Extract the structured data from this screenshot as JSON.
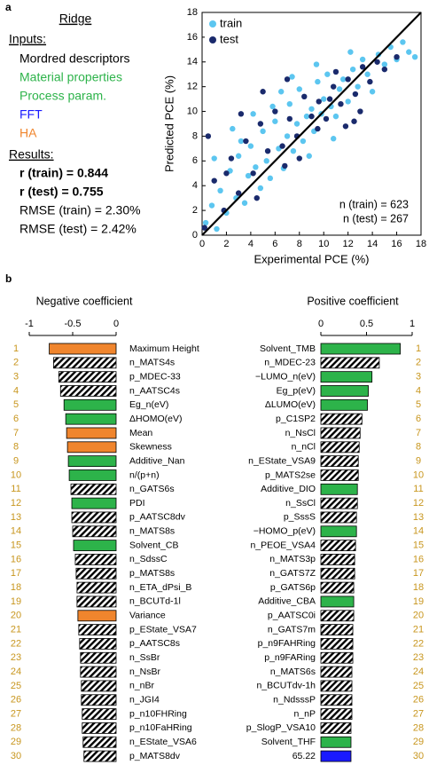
{
  "panel_a": {
    "label": "a",
    "method": "Ridge",
    "inputs_title": "Inputs:",
    "inputs": [
      {
        "text": "Mordred descriptors",
        "color": "#000000"
      },
      {
        "text": "Material properties",
        "color": "#2db34a"
      },
      {
        "text": "Process param.",
        "color": "#2db34a"
      },
      {
        "text": "FFT",
        "color": "#1a1aff"
      },
      {
        "text": "HA",
        "color": "#f0852d"
      }
    ],
    "results_title": "Results:",
    "results": [
      "r (train) = 0.844",
      "r (test) = 0.755",
      "RMSE (train) = 2.30%",
      "RMSE (test) = 2.42%"
    ]
  },
  "panel_b": {
    "label": "b"
  },
  "chart_data": [
    {
      "type": "scatter",
      "xlabel": "Experimental PCE (%)",
      "ylabel": "Predicted PCE (%)",
      "xlim": [
        0,
        18
      ],
      "ylim": [
        0,
        18
      ],
      "xticks": [
        0,
        2,
        4,
        6,
        8,
        10,
        12,
        14,
        16,
        18
      ],
      "yticks": [
        0,
        2,
        4,
        6,
        8,
        10,
        12,
        14,
        16,
        18
      ],
      "legend": "upper left",
      "annotations": [
        "n (train) = 623",
        "n (test) = 267"
      ],
      "series": [
        {
          "name": "train",
          "color": "#5cc6f0",
          "x": [
            0.3,
            0.8,
            1.2,
            1.5,
            2,
            2.3,
            2.8,
            3,
            3.5,
            3.8,
            4,
            4.4,
            4.8,
            5,
            5.3,
            5.6,
            6,
            6.3,
            6.7,
            7,
            7.2,
            7.5,
            7.8,
            8,
            8.3,
            8.6,
            9,
            9.2,
            9.5,
            9.8,
            10,
            10.3,
            10.6,
            11,
            11.3,
            11.6,
            12,
            12.4,
            12.8,
            13.2,
            13.6,
            14,
            14.5,
            15,
            15.5,
            16,
            16.5,
            17,
            17.5,
            1,
            2.5,
            4.2,
            6.5,
            8.8,
            10.8,
            12.2,
            3.2,
            5.8,
            7.4,
            9.4
          ],
          "values": [
            1,
            2.4,
            0.5,
            3.6,
            1.8,
            5.2,
            3,
            6.4,
            2.6,
            4.8,
            7.2,
            5.5,
            3.8,
            8.4,
            6,
            4.6,
            9.2,
            7,
            5.4,
            8,
            10.6,
            6.8,
            9,
            11.8,
            7.6,
            9.6,
            10.2,
            8.4,
            12.4,
            9.8,
            11,
            13,
            10.4,
            9.6,
            11.8,
            12.6,
            10.8,
            13.4,
            12,
            14.2,
            13,
            11.6,
            14.6,
            13.8,
            15.2,
            14.2,
            15.6,
            14.8,
            14.4,
            6.2,
            8.6,
            9.8,
            11.6,
            6.4,
            7.8,
            14.8,
            7.6,
            10.4,
            12.8,
            13.8
          ]
        },
        {
          "name": "test",
          "color": "#1a2a6c",
          "x": [
            0.2,
            0.5,
            1,
            1.8,
            2.4,
            3,
            3.6,
            4.2,
            4.8,
            5.4,
            6,
            6.6,
            7.2,
            7.8,
            8.4,
            9,
            9.6,
            10.2,
            10.8,
            11.4,
            12,
            12.6,
            13.2,
            13.8,
            14.4,
            15,
            2,
            5,
            8,
            11,
            13,
            9.5,
            10.5,
            7,
            12.5,
            16,
            6.8,
            4.5,
            3.2,
            11.8
          ],
          "values": [
            0.6,
            8,
            4.4,
            2,
            6.2,
            3.4,
            7.6,
            5,
            9,
            6.8,
            10,
            7.2,
            9.4,
            8,
            11.2,
            9.6,
            10.8,
            9.4,
            12,
            10.6,
            12.6,
            11.4,
            13.6,
            12.4,
            14,
            13.4,
            5,
            11.6,
            6.2,
            13.2,
            10,
            8.6,
            11,
            12.6,
            9.2,
            14.4,
            5.6,
            3,
            9.8,
            8.8
          ]
        }
      ]
    },
    {
      "type": "bar",
      "title": "Negative coefficient",
      "xlim": [
        -1,
        0
      ],
      "xticks": [
        -1,
        -0.5,
        0
      ],
      "row_labels": [
        1,
        2,
        3,
        4,
        5,
        6,
        7,
        8,
        9,
        10,
        11,
        12,
        13,
        14,
        15,
        16,
        17,
        18,
        19,
        20,
        21,
        22,
        23,
        24,
        25,
        26,
        27,
        28,
        29,
        30
      ],
      "categories": [
        "Maximum Height",
        "n_MATS4s",
        "p_MDEC-33",
        "n_AATSC4s",
        "Eg_n(eV)",
        "ΔHOMO(eV)",
        "Mean",
        "Skewness",
        "Additive_Nan",
        "n/(p+n)",
        "n_GATS6s",
        "PDI",
        "p_AATSC8dv",
        "n_MATS8s",
        "Solvent_CB",
        "n_SdssC",
        "p_MATS8s",
        "n_ETA_dPsi_B",
        "n_BCUTd-1l",
        "Variance",
        "p_EState_VSA7",
        "p_AATSC8s",
        "n_SsBr",
        "n_NsBr",
        "n_nBr",
        "n_JGI4",
        "p_n10FHRing",
        "p_n10FaHRing",
        "n_EState_VSA6",
        "p_MATS8dv"
      ],
      "values": [
        -0.77,
        -0.72,
        -0.66,
        -0.64,
        -0.6,
        -0.58,
        -0.57,
        -0.56,
        -0.55,
        -0.54,
        -0.52,
        -0.51,
        -0.51,
        -0.5,
        -0.49,
        -0.47,
        -0.46,
        -0.45,
        -0.45,
        -0.44,
        -0.43,
        -0.42,
        -0.41,
        -0.41,
        -0.4,
        -0.4,
        -0.39,
        -0.39,
        -0.38,
        -0.37
      ],
      "colors": [
        "#f0852d",
        "hatch",
        "hatch",
        "hatch",
        "#2db34a",
        "#2db34a",
        "#f0852d",
        "#f0852d",
        "#2db34a",
        "#2db34a",
        "hatch",
        "#2db34a",
        "hatch",
        "hatch",
        "#2db34a",
        "hatch",
        "hatch",
        "hatch",
        "hatch",
        "#f0852d",
        "hatch",
        "hatch",
        "hatch",
        "hatch",
        "hatch",
        "hatch",
        "hatch",
        "hatch",
        "hatch",
        "hatch"
      ]
    },
    {
      "type": "bar",
      "title": "Positive coefficient",
      "xlim": [
        0,
        1
      ],
      "xticks": [
        0,
        0.5,
        1
      ],
      "row_labels": [
        1,
        2,
        3,
        4,
        5,
        6,
        7,
        8,
        9,
        10,
        11,
        12,
        13,
        14,
        15,
        16,
        17,
        18,
        19,
        20,
        21,
        22,
        23,
        24,
        25,
        26,
        27,
        28,
        29,
        30
      ],
      "categories": [
        "Solvent_TMB",
        "n_MDEC-23",
        "−LUMO_n(eV)",
        "Eg_p(eV)",
        "ΔLUMO(eV)",
        "p_C1SP2",
        "n_NsCl",
        "n_nCl",
        "n_EState_VSA9",
        "p_MATS2se",
        "Additive_DIO",
        "n_SsCl",
        "p_SssS",
        "−HOMO_p(eV)",
        "n_PEOE_VSA4",
        "n_MATS3p",
        "n_GATS7Z",
        "p_GATS6p",
        "Additive_CBA",
        "p_AATSC0i",
        "n_GATS7m",
        "p_n9FAHRing",
        "p_n9FARing",
        "n_MATS6s",
        "n_BCUTdv-1h",
        "n_NdsssP",
        "n_nP",
        "p_SlogP_VSA10",
        "Solvent_THF",
        "65.22"
      ],
      "values": [
        0.87,
        0.64,
        0.56,
        0.52,
        0.51,
        0.45,
        0.43,
        0.42,
        0.41,
        0.41,
        0.4,
        0.4,
        0.39,
        0.39,
        0.38,
        0.37,
        0.37,
        0.36,
        0.36,
        0.36,
        0.35,
        0.35,
        0.35,
        0.34,
        0.34,
        0.34,
        0.34,
        0.33,
        0.33,
        0.33
      ],
      "colors": [
        "#2db34a",
        "hatch",
        "#2db34a",
        "#2db34a",
        "#2db34a",
        "hatch",
        "hatch",
        "hatch",
        "hatch",
        "hatch",
        "#2db34a",
        "hatch",
        "hatch",
        "#2db34a",
        "hatch",
        "hatch",
        "hatch",
        "hatch",
        "#2db34a",
        "hatch",
        "hatch",
        "hatch",
        "hatch",
        "hatch",
        "hatch",
        "hatch",
        "hatch",
        "hatch",
        "#2db34a",
        "#1a1aff"
      ]
    }
  ]
}
